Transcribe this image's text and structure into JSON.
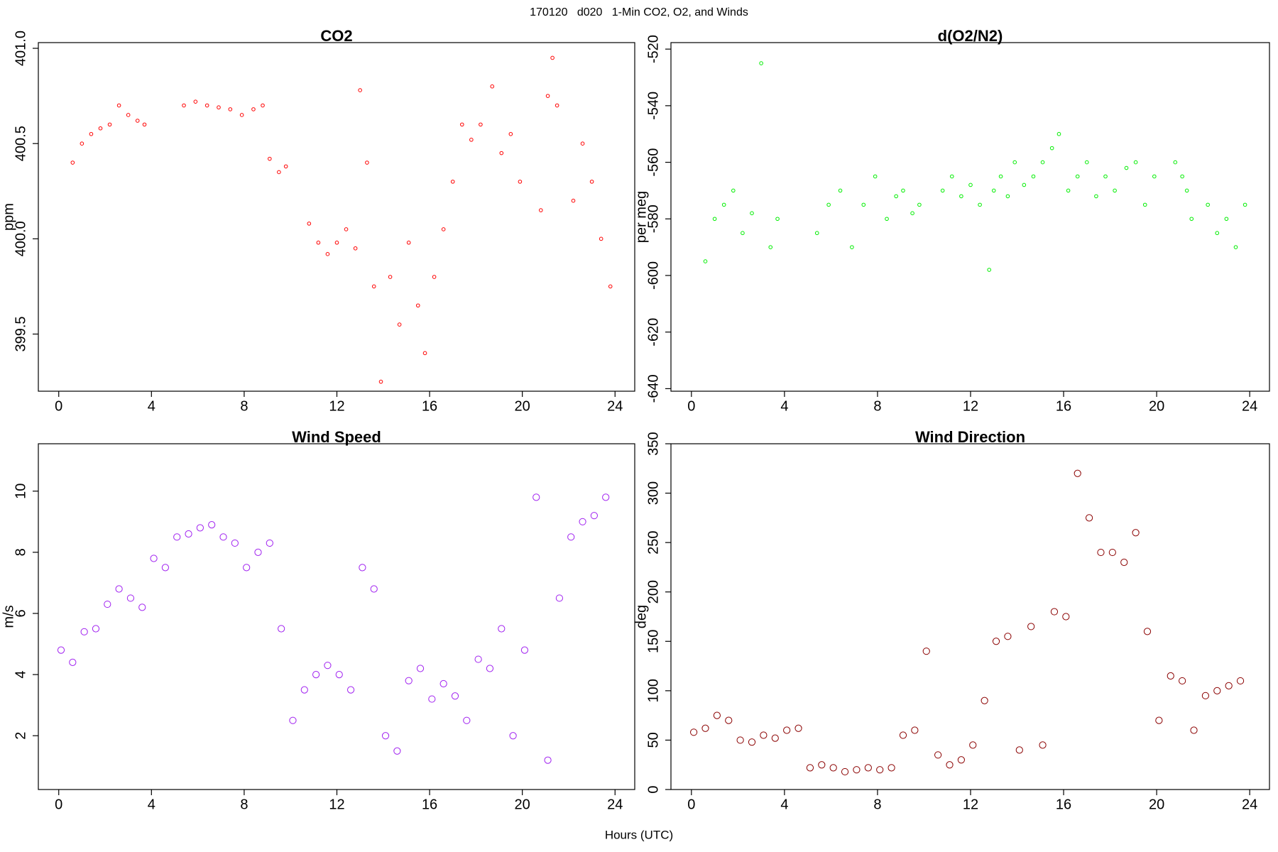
{
  "title": "170120   d020   1-Min CO2, O2, and Winds",
  "xlabel": "Hours (UTC)",
  "chart_data": [
    {
      "type": "scatter",
      "title": "CO2",
      "ylabel": "ppm",
      "color": "#ff0000",
      "x": [
        0.6,
        1.0,
        1.4,
        1.8,
        2.2,
        2.6,
        3.0,
        3.4,
        3.7,
        5.4,
        5.9,
        6.4,
        6.9,
        7.4,
        7.9,
        8.4,
        8.8,
        9.1,
        9.5,
        9.8,
        10.8,
        11.2,
        11.6,
        12.0,
        12.4,
        12.8,
        13.0,
        13.3,
        13.6,
        13.9,
        14.3,
        14.7,
        15.1,
        15.5,
        15.8,
        16.2,
        16.6,
        17.0,
        17.4,
        17.8,
        18.2,
        18.7,
        19.1,
        19.5,
        19.9,
        20.8,
        21.1,
        21.3,
        21.5,
        22.2,
        22.6,
        23.0,
        23.4,
        23.8
      ],
      "values": [
        400.4,
        400.5,
        400.55,
        400.58,
        400.6,
        400.7,
        400.65,
        400.62,
        400.6,
        400.7,
        400.72,
        400.7,
        400.69,
        400.68,
        400.65,
        400.68,
        400.7,
        400.42,
        400.35,
        400.38,
        400.08,
        399.98,
        399.92,
        399.98,
        400.05,
        399.95,
        400.78,
        400.4,
        399.75,
        399.25,
        399.8,
        399.55,
        399.98,
        399.65,
        399.4,
        399.8,
        400.05,
        400.3,
        400.6,
        400.52,
        400.6,
        400.8,
        400.45,
        400.55,
        400.3,
        400.15,
        400.75,
        400.95,
        400.7,
        400.2,
        400.5,
        400.3,
        400.0,
        399.75
      ],
      "xlim": [
        -0.88,
        24.85
      ],
      "xticks": [
        0,
        4,
        8,
        12,
        16,
        20,
        24
      ],
      "ylim": [
        399.2,
        401.03
      ],
      "yticks": [
        399.5,
        {
          "value": 400,
          "label": "400.0"
        },
        400.5,
        {
          "value": 401,
          "label": "401.0"
        }
      ]
    },
    {
      "type": "scatter",
      "title": "d(O2/N2)",
      "ylabel": "per meg",
      "color": "#00ee00",
      "x": [
        0.6,
        1.0,
        1.4,
        1.8,
        2.2,
        2.6,
        3.0,
        3.4,
        3.7,
        5.4,
        5.9,
        6.4,
        6.9,
        7.4,
        7.9,
        8.4,
        8.8,
        9.1,
        9.5,
        9.8,
        10.8,
        11.2,
        11.6,
        12.0,
        12.4,
        12.8,
        13.0,
        13.3,
        13.6,
        13.9,
        14.3,
        14.7,
        15.1,
        15.5,
        15.8,
        16.2,
        16.6,
        17.0,
        17.4,
        17.8,
        18.2,
        18.7,
        19.1,
        19.5,
        19.9,
        20.8,
        21.1,
        21.3,
        21.5,
        22.2,
        22.6,
        23.0,
        23.4,
        23.8
      ],
      "values": [
        -595,
        -580,
        -575,
        -570,
        -585,
        -578,
        -525,
        -590,
        -580,
        -585,
        -575,
        -570,
        -590,
        -575,
        -565,
        -580,
        -572,
        -570,
        -578,
        -575,
        -570,
        -565,
        -572,
        -568,
        -575,
        -598,
        -570,
        -565,
        -572,
        -560,
        -568,
        -565,
        -560,
        -555,
        -550,
        -570,
        -565,
        -560,
        -572,
        -565,
        -570,
        -562,
        -560,
        -575,
        -565,
        -560,
        -565,
        -570,
        -580,
        -575,
        -585,
        -580,
        -590,
        -575
      ],
      "xlim": [
        -0.88,
        24.85
      ],
      "xticks": [
        0,
        4,
        8,
        12,
        16,
        20,
        24
      ],
      "ylim": [
        -640.9,
        -517.7
      ],
      "yticks": [
        -640,
        -620,
        -600,
        -580,
        -560,
        -540,
        -520
      ]
    },
    {
      "type": "scatter",
      "title": "Wind Speed",
      "ylabel": "m/s",
      "color": "#a020f0",
      "x": [
        0.1,
        0.6,
        1.1,
        1.6,
        2.1,
        2.6,
        3.1,
        3.6,
        4.1,
        4.6,
        5.1,
        5.6,
        6.1,
        6.6,
        7.1,
        7.6,
        8.1,
        8.6,
        9.1,
        9.6,
        10.1,
        10.6,
        11.1,
        11.6,
        12.1,
        12.6,
        13.1,
        13.6,
        14.1,
        14.6,
        15.1,
        15.6,
        16.1,
        16.6,
        17.1,
        17.6,
        18.1,
        18.6,
        19.1,
        19.6,
        20.1,
        20.6,
        21.1,
        21.6,
        22.1,
        22.6,
        23.1,
        23.6
      ],
      "values": [
        4.8,
        4.4,
        5.4,
        5.5,
        6.3,
        6.8,
        6.5,
        6.2,
        7.8,
        7.5,
        8.5,
        8.6,
        8.8,
        8.9,
        8.5,
        8.3,
        7.5,
        8.0,
        8.3,
        5.5,
        2.5,
        3.5,
        4.0,
        4.3,
        4.0,
        3.5,
        7.5,
        6.8,
        2.0,
        1.5,
        3.8,
        4.2,
        3.2,
        3.7,
        3.3,
        2.5,
        4.5,
        4.2,
        5.5,
        2.0,
        4.8,
        9.8,
        1.2,
        6.5,
        8.5,
        9.0,
        9.2,
        9.8
      ],
      "xlim": [
        -0.88,
        24.85
      ],
      "xticks": [
        0,
        4,
        8,
        12,
        16,
        20,
        24
      ],
      "ylim": [
        0.24,
        11.55
      ],
      "yticks": [
        2,
        4,
        6,
        8,
        10
      ]
    },
    {
      "type": "scatter",
      "title": "Wind Direction",
      "ylabel": "deg",
      "color": "#8b0000",
      "x": [
        0.1,
        0.6,
        1.1,
        1.6,
        2.1,
        2.6,
        3.1,
        3.6,
        4.1,
        4.6,
        5.1,
        5.6,
        6.1,
        6.6,
        7.1,
        7.6,
        8.1,
        8.6,
        9.1,
        9.6,
        10.1,
        10.6,
        11.1,
        11.6,
        12.1,
        12.6,
        13.1,
        13.6,
        14.1,
        14.6,
        15.1,
        15.6,
        16.1,
        16.6,
        17.1,
        17.6,
        18.1,
        18.6,
        19.1,
        19.6,
        20.1,
        20.6,
        21.1,
        21.6,
        22.1,
        22.6,
        23.1,
        23.6
      ],
      "values": [
        58,
        62,
        75,
        70,
        50,
        48,
        55,
        52,
        60,
        62,
        22,
        25,
        22,
        18,
        20,
        22,
        20,
        22,
        55,
        60,
        140,
        35,
        25,
        30,
        45,
        90,
        150,
        155,
        40,
        165,
        45,
        180,
        175,
        320,
        275,
        240,
        240,
        230,
        260,
        160,
        70,
        115,
        110,
        60,
        95,
        100,
        105,
        110
      ],
      "xlim": [
        -0.88,
        24.85
      ],
      "xticks": [
        0,
        4,
        8,
        12,
        16,
        20,
        24
      ],
      "ylim": [
        0,
        350
      ],
      "yticks": [
        0,
        50,
        100,
        150,
        200,
        250,
        300,
        350
      ]
    }
  ]
}
